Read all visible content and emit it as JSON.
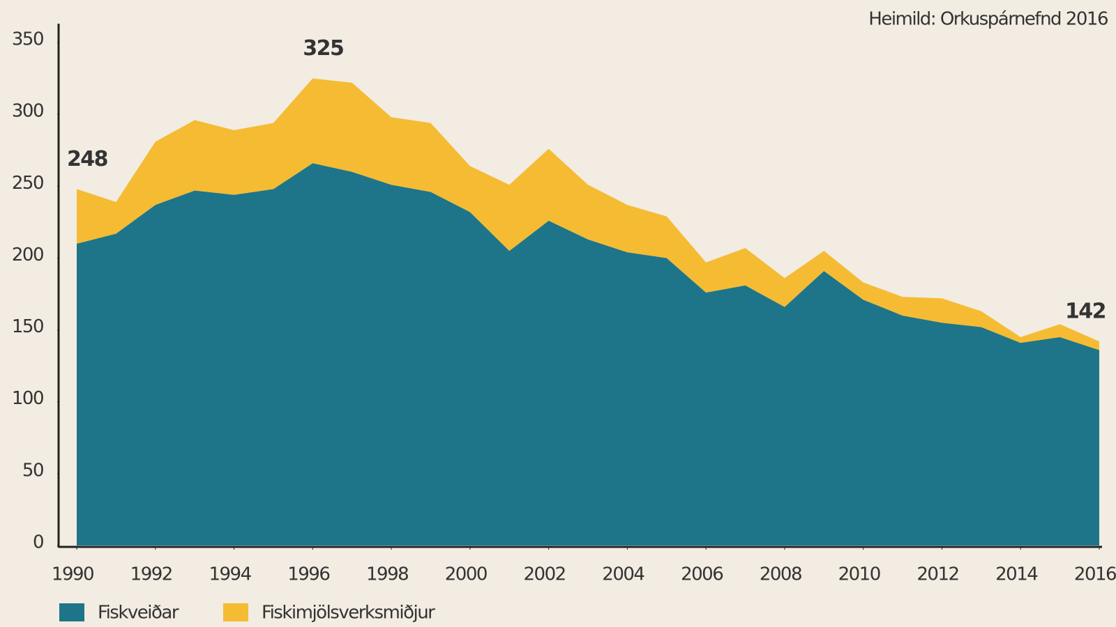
{
  "chart_data": {
    "type": "stacked_area",
    "source": "Heimild: Orkuspárnefnd 2016",
    "x": [
      1990,
      1991,
      1992,
      1993,
      1994,
      1995,
      1996,
      1997,
      1998,
      1999,
      2000,
      2001,
      2002,
      2003,
      2004,
      2005,
      2006,
      2007,
      2008,
      2009,
      2010,
      2011,
      2012,
      2013,
      2014,
      2015,
      2016
    ],
    "series": [
      {
        "name": "Fiskveiðar",
        "color": "#1e7589",
        "values": [
          210,
          217,
          237,
          247,
          244,
          248,
          266,
          260,
          251,
          246,
          232,
          205,
          226,
          213,
          204,
          200,
          176,
          181,
          166,
          191,
          171,
          160,
          155,
          152,
          141,
          145,
          136
        ]
      },
      {
        "name": "Fiskimjölsverksmiðjur",
        "color": "#f5bb33",
        "values": [
          38,
          22,
          44,
          49,
          45,
          46,
          59,
          62,
          47,
          48,
          32,
          46,
          50,
          38,
          33,
          29,
          21,
          26,
          20,
          14,
          12,
          13,
          17,
          11,
          4,
          9,
          6
        ]
      }
    ],
    "annotations": [
      {
        "x": 1990,
        "label": "248"
      },
      {
        "x": 1996,
        "label": "325"
      },
      {
        "x": 2016,
        "label": "142"
      }
    ],
    "xlim": [
      1990,
      2016
    ],
    "xticks": [
      1990,
      1992,
      1994,
      1996,
      1998,
      2000,
      2002,
      2004,
      2006,
      2008,
      2010,
      2012,
      2014,
      2016
    ],
    "ylim": [
      0,
      350
    ],
    "yticks": [
      0,
      50,
      100,
      150,
      200,
      250,
      300,
      350
    ],
    "legend": "bottom-left"
  }
}
